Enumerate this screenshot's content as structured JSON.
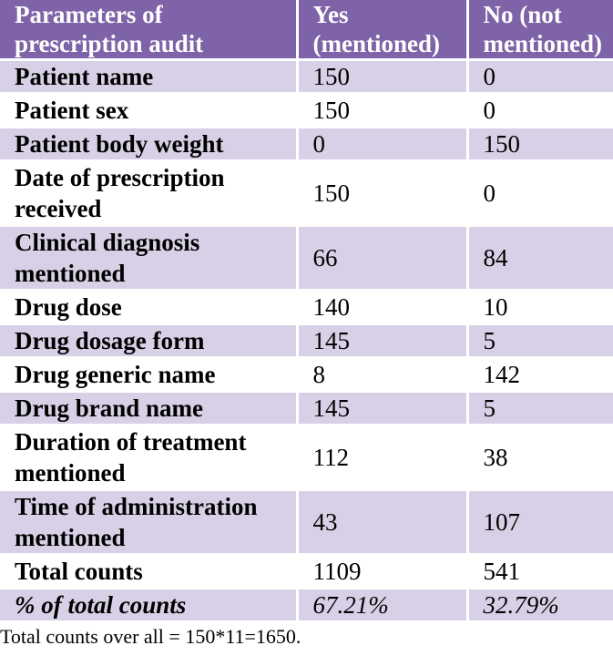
{
  "table": {
    "headers": [
      "Parameters of prescription audit",
      "Yes (mentioned)",
      "No (not mentioned)"
    ],
    "rows": [
      {
        "parameter": "Patient name",
        "yes": "150",
        "no": "0"
      },
      {
        "parameter": "Patient sex",
        "yes": "150",
        "no": "0"
      },
      {
        "parameter": "Patient body weight",
        "yes": "0",
        "no": "150"
      },
      {
        "parameter": "Date of prescription received",
        "yes": "150",
        "no": "0"
      },
      {
        "parameter": "Clinical diagnosis mentioned",
        "yes": "66",
        "no": "84"
      },
      {
        "parameter": "Drug dose",
        "yes": "140",
        "no": "10"
      },
      {
        "parameter": "Drug dosage form",
        "yes": "145",
        "no": "5"
      },
      {
        "parameter": "Drug generic name",
        "yes": "8",
        "no": "142"
      },
      {
        "parameter": "Drug brand name",
        "yes": "145",
        "no": "5"
      },
      {
        "parameter": "Duration of treatment mentioned",
        "yes": "112",
        "no": "38"
      },
      {
        "parameter": "Time of administration mentioned",
        "yes": "43",
        "no": "107"
      },
      {
        "parameter": "Total counts",
        "yes": "1109",
        "no": "541"
      },
      {
        "parameter": "% of total counts",
        "yes": "67.21%",
        "no": "32.79%"
      }
    ]
  },
  "footnote": "Total counts over all = 150*11=1650."
}
